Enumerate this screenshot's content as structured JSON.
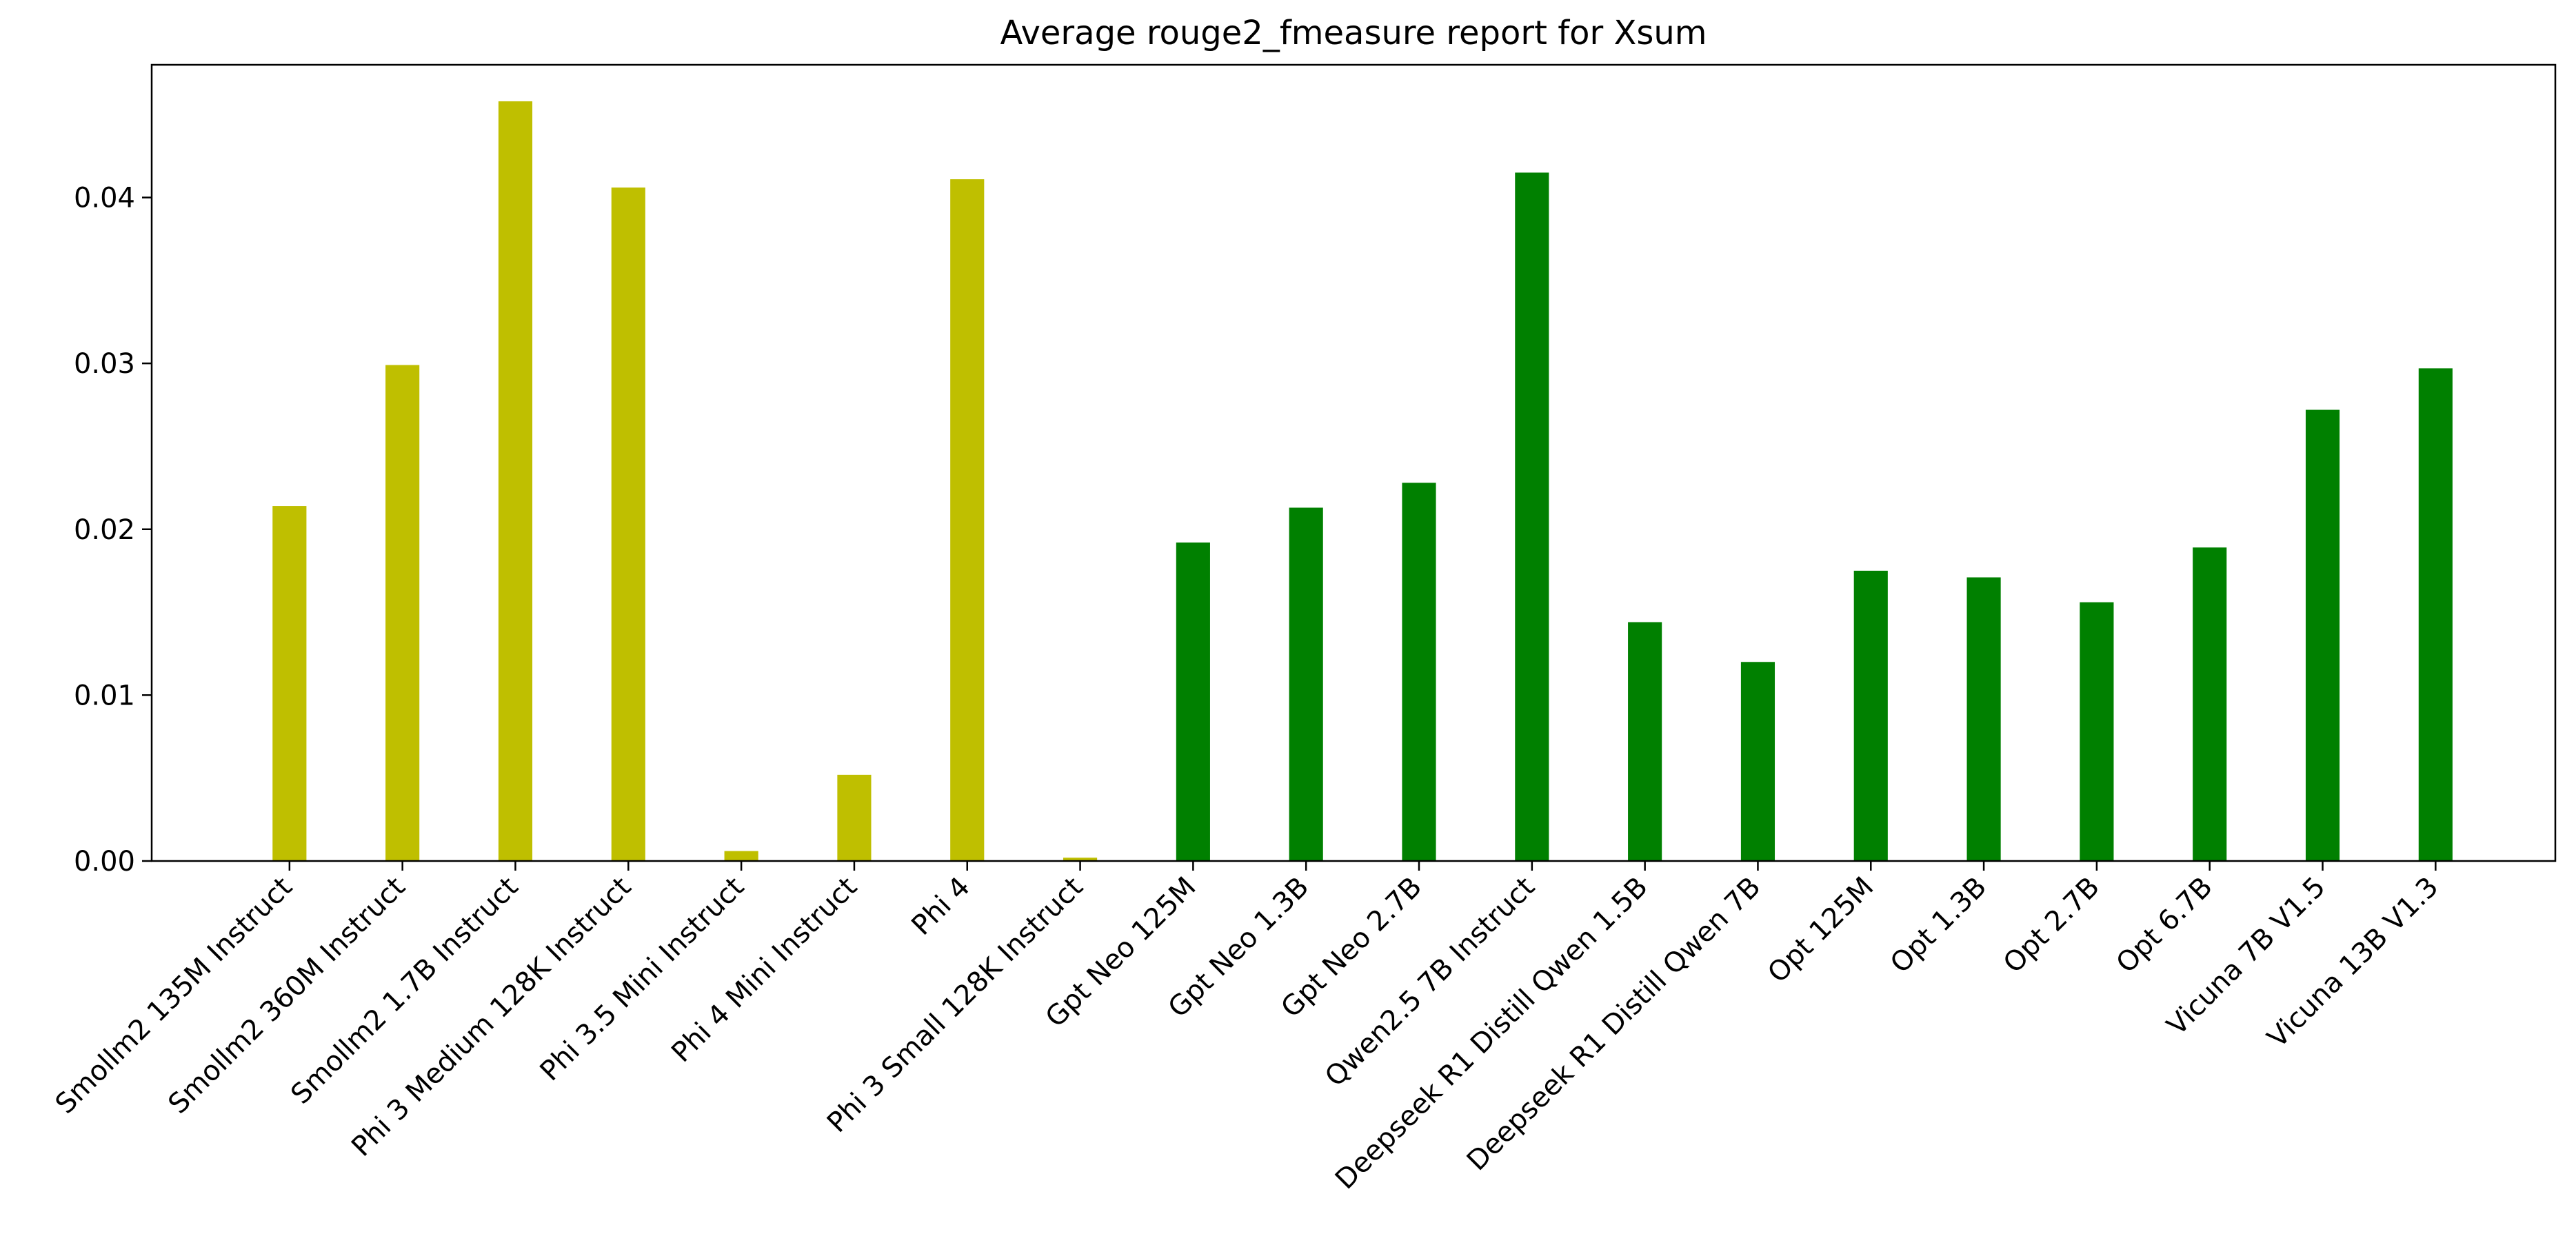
{
  "chart_data": {
    "type": "bar",
    "title": "Average rouge2_fmeasure report for Xsum",
    "xlabel": "",
    "ylabel": "",
    "ylim": [
      0,
      0.048
    ],
    "yticks": [
      0.0,
      0.01,
      0.02,
      0.03,
      0.04
    ],
    "ytick_labels": [
      "0.00",
      "0.01",
      "0.02",
      "0.03",
      "0.04"
    ],
    "grid": false,
    "colors": {
      "group_a": "#bfbf00",
      "group_b": "#008000"
    },
    "categories": [
      "Smollm2 135M Instruct",
      "Smollm2 360M Instruct",
      "Smollm2 1.7B Instruct",
      "Phi 3 Medium 128K Instruct",
      "Phi 3.5 Mini Instruct",
      "Phi 4 Mini Instruct",
      "Phi 4",
      "Phi 3 Small 128K Instruct",
      "Gpt Neo 125M",
      "Gpt Neo 1.3B",
      "Gpt Neo 2.7B",
      "Qwen2.5 7B Instruct",
      "Deepseek R1 Distill Qwen 1.5B",
      "Deepseek R1 Distill Qwen 7B",
      "Opt 125M",
      "Opt 1.3B",
      "Opt 2.7B",
      "Opt 6.7B",
      "Vicuna 7B V1.5",
      "Vicuna 13B V1.3"
    ],
    "values": [
      0.0214,
      0.0299,
      0.0458,
      0.0406,
      0.0006,
      0.0052,
      0.0411,
      0.0002,
      0.0192,
      0.0213,
      0.0228,
      0.0415,
      0.0144,
      0.012,
      0.0175,
      0.0171,
      0.0156,
      0.0189,
      0.0272,
      0.0297
    ],
    "bar_groups": [
      "group_a",
      "group_a",
      "group_a",
      "group_a",
      "group_a",
      "group_a",
      "group_a",
      "group_a",
      "group_b",
      "group_b",
      "group_b",
      "group_b",
      "group_b",
      "group_b",
      "group_b",
      "group_b",
      "group_b",
      "group_b",
      "group_b",
      "group_b"
    ]
  }
}
